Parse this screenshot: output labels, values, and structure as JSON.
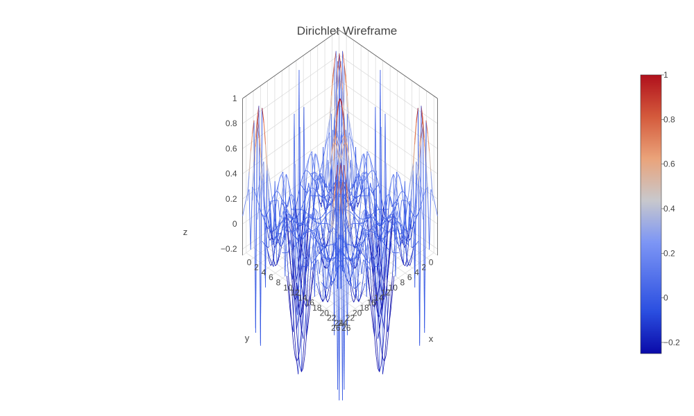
{
  "chart_data": {
    "type": "surface-wireframe",
    "title": "Dirichlet Wireframe",
    "function": "z = (sin(n*u/2) / (n*sin(u/2))) * (sin(n*v/2) / (n*sin(v/2))), n = 4, periodic Dirichlet kernel",
    "grid": {
      "x_range": [
        0,
        27
      ],
      "y_range": [
        0,
        27
      ],
      "peak_at": [
        13.5,
        13.5
      ],
      "peak_z": 1
    },
    "axes": {
      "x": {
        "label": "x",
        "ticks": [
          "0",
          "2",
          "4",
          "6",
          "8",
          "10",
          "12",
          "14",
          "16",
          "18",
          "20",
          "22",
          "24",
          "26"
        ]
      },
      "y": {
        "label": "y",
        "ticks": [
          "0",
          "2",
          "4",
          "6",
          "8",
          "10",
          "12",
          "14",
          "16",
          "18",
          "20",
          "22",
          "24",
          "26"
        ]
      },
      "z": {
        "label": "z",
        "ticks": [
          "−0.2",
          "0",
          "0.2",
          "0.4",
          "0.6",
          "0.8",
          "1"
        ],
        "range": [
          -0.25,
          1.0
        ]
      }
    },
    "colorscale": {
      "stops": [
        [
          0,
          "#0a0aa8"
        ],
        [
          0.15,
          "#2a4ee0"
        ],
        [
          0.4,
          "#7d96f5"
        ],
        [
          0.55,
          "#c8c8cc"
        ],
        [
          0.7,
          "#eaa37a"
        ],
        [
          0.85,
          "#d45a3c"
        ],
        [
          1,
          "#b0101c"
        ]
      ],
      "ticks": [
        "−0.2",
        "0",
        "0.2",
        "0.4",
        "0.6",
        "0.8",
        "1"
      ],
      "range": [
        -0.25,
        1.0
      ]
    },
    "grid_lines": true,
    "colorbar_position": "right"
  }
}
